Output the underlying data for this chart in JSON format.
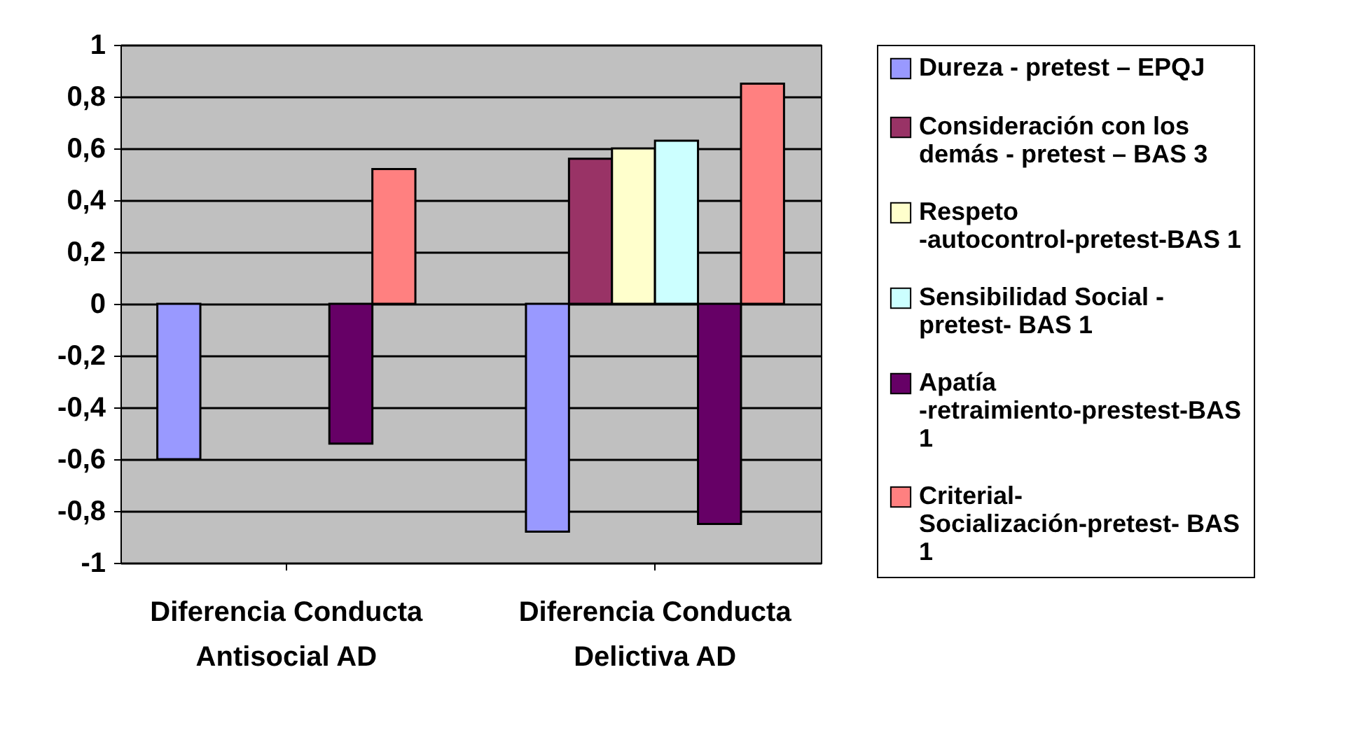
{
  "chart_data": {
    "type": "bar",
    "categories": [
      "Diferencia Conducta Antisocial AD",
      "Diferencia Conducta Delictiva AD"
    ],
    "series": [
      {
        "name": "Dureza - pretest – EPQJ",
        "color": "#9999ff",
        "values": [
          -0.6,
          -0.88
        ]
      },
      {
        "name": "Consideración con los demás - pretest – BAS 3",
        "color": "#993366",
        "values": [
          null,
          0.56
        ]
      },
      {
        "name": "Respeto -autocontrol-pretest-BAS 1",
        "color": "#ffffcc",
        "values": [
          null,
          0.6
        ]
      },
      {
        "name": " Sensibilidad Social - pretest- BAS 1",
        "color": "#ccffff",
        "values": [
          null,
          0.63
        ]
      },
      {
        "name": "Apatía -retraimiento-prestest-BAS 1",
        "color": "#660066",
        "values": [
          -0.54,
          -0.85
        ]
      },
      {
        "name": "Criterial- Socialización-pretest- BAS 1",
        "color": "#ff8080",
        "values": [
          0.52,
          0.85
        ]
      }
    ],
    "ylim": [
      -1,
      1
    ],
    "yticks": [
      {
        "value": -1,
        "label": "-1"
      },
      {
        "value": -0.8,
        "label": "-0,8"
      },
      {
        "value": -0.6,
        "label": "-0,6"
      },
      {
        "value": -0.4,
        "label": "-0,4"
      },
      {
        "value": -0.2,
        "label": "-0,2"
      },
      {
        "value": 0,
        "label": "0"
      },
      {
        "value": 0.2,
        "label": "0,2"
      },
      {
        "value": 0.4,
        "label": "0,4"
      },
      {
        "value": 0.6,
        "label": "0,6"
      },
      {
        "value": 0.8,
        "label": "0,8"
      },
      {
        "value": 1,
        "label": "1"
      }
    ],
    "grid": "y",
    "legend": "right"
  }
}
